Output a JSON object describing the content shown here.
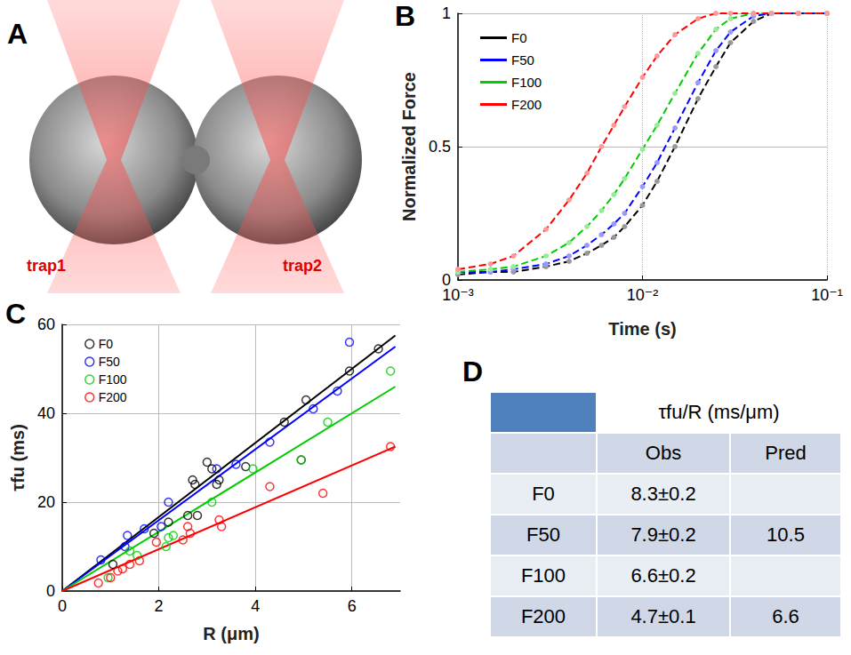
{
  "diagram": {
    "panel_label": "A",
    "labels": [
      "trap1",
      "trap2"
    ]
  },
  "chart_data": [
    {
      "panel_label": "B",
      "type": "line",
      "xlabel": "Time (s)",
      "ylabel": "Normalized Force",
      "log": "x",
      "grid": true,
      "legend": "upper left",
      "xlim": [
        0.001,
        0.1
      ],
      "xticks": [
        {
          "value": 0.001,
          "label": "10⁻³"
        },
        {
          "value": 0.01,
          "label": "10⁻²"
        },
        {
          "value": 0.1,
          "label": "10⁻¹"
        }
      ],
      "ylim": [
        0,
        1
      ],
      "yticks": [
        0,
        0.5,
        1
      ],
      "x": [
        0.001,
        0.0015,
        0.002,
        0.003,
        0.004,
        0.005,
        0.006,
        0.007,
        0.008,
        0.01,
        0.012,
        0.015,
        0.02,
        0.025,
        0.03,
        0.04,
        0.05,
        0.07,
        0.1
      ],
      "series": [
        {
          "name": "F0",
          "color": "#000000",
          "marker": "circle",
          "line_style": "dashed",
          "values": [
            0.02,
            0.03,
            0.03,
            0.05,
            0.07,
            0.1,
            0.13,
            0.16,
            0.2,
            0.28,
            0.37,
            0.5,
            0.68,
            0.8,
            0.89,
            0.97,
            1,
            1,
            1
          ]
        },
        {
          "name": "F50",
          "color": "#0000ff",
          "marker": "circle",
          "line_style": "dashed",
          "values": [
            0.03,
            0.03,
            0.04,
            0.06,
            0.09,
            0.13,
            0.17,
            0.21,
            0.25,
            0.35,
            0.44,
            0.57,
            0.74,
            0.86,
            0.93,
            0.99,
            1,
            1,
            1
          ]
        },
        {
          "name": "F100",
          "color": "#00cc00",
          "marker": "circle",
          "line_style": "dashed",
          "values": [
            0.03,
            0.04,
            0.05,
            0.09,
            0.14,
            0.2,
            0.26,
            0.32,
            0.38,
            0.49,
            0.58,
            0.7,
            0.85,
            0.94,
            0.98,
            1,
            1,
            1,
            1
          ]
        },
        {
          "name": "F200",
          "color": "#ff0000",
          "marker": "circle",
          "line_style": "dashed",
          "values": [
            0.04,
            0.06,
            0.09,
            0.19,
            0.3,
            0.4,
            0.5,
            0.58,
            0.65,
            0.76,
            0.84,
            0.92,
            0.98,
            1,
            1,
            1,
            1,
            1,
            1
          ]
        }
      ]
    },
    {
      "panel_label": "C",
      "type": "scatter",
      "xlabel": "R (μm)",
      "ylabel": "τfu (ms)",
      "grid": true,
      "legend": "upper left",
      "xlim": [
        0,
        7
      ],
      "xticks": [
        0,
        2,
        4,
        6
      ],
      "ylim": [
        0,
        60
      ],
      "yticks": [
        0,
        20,
        40,
        60
      ],
      "series": [
        {
          "name": "F0",
          "color": "#000000",
          "marker": "circle",
          "line_style": "solid",
          "x": [
            1.05,
            1.9,
            2.2,
            2.6,
            2.7,
            2.75,
            2.8,
            3.0,
            3.1,
            3.2,
            3.25,
            3.8,
            4.6,
            4.95,
            5.05,
            5.95,
            6.55
          ],
          "values": [
            6,
            13,
            15.5,
            17,
            25,
            24,
            17,
            29,
            27.5,
            24,
            25,
            28,
            38,
            29.5,
            43,
            49.5,
            54.5
          ],
          "fit": {
            "x": [
              0,
              6.9
            ],
            "values": [
              0,
              57.5
            ]
          }
        },
        {
          "name": "F50",
          "color": "#0000ff",
          "marker": "circle",
          "line_style": "solid",
          "x": [
            0.8,
            1.35,
            1.3,
            1.7,
            2.05,
            2.2,
            3.2,
            3.6,
            4.3,
            5.2,
            5.7,
            5.95
          ],
          "values": [
            7,
            12.5,
            10,
            14,
            14.5,
            20,
            27.5,
            28.5,
            33.5,
            41,
            45,
            56
          ],
          "fit": {
            "x": [
              0,
              6.9
            ],
            "values": [
              0,
              55
            ]
          }
        },
        {
          "name": "F100",
          "color": "#00cc00",
          "marker": "circle",
          "line_style": "solid",
          "x": [
            0.95,
            1.4,
            1.55,
            2.15,
            2.2,
            2.3,
            3.1,
            3.95,
            4.95,
            5.5,
            6.8
          ],
          "values": [
            3,
            9,
            8,
            10,
            12,
            12.5,
            20,
            27.5,
            29.5,
            38,
            49.5
          ],
          "fit": {
            "x": [
              0,
              6.9
            ],
            "values": [
              0,
              46
            ]
          }
        },
        {
          "name": "F200",
          "color": "#ff0000",
          "marker": "circle",
          "line_style": "solid",
          "x": [
            0.75,
            1.0,
            1.15,
            1.25,
            1.4,
            1.6,
            1.95,
            2.5,
            2.6,
            2.65,
            3.25,
            3.3,
            4.3,
            5.4,
            6.8
          ],
          "values": [
            1.8,
            3,
            4.5,
            5,
            6,
            6.8,
            11,
            11.5,
            14.5,
            13,
            16,
            14.5,
            23.5,
            22,
            32.5
          ],
          "fit": {
            "x": [
              0,
              6.9
            ],
            "values": [
              0,
              32.5
            ]
          }
        }
      ]
    }
  ],
  "table": {
    "panel_label": "D",
    "header": "τfu/R (ms/μm)",
    "columns": [
      "Obs",
      "Pred"
    ],
    "rows": [
      [
        "F0",
        "8.3±0.2",
        null
      ],
      [
        "F50",
        "7.9±0.2",
        "10.5"
      ],
      [
        "F100",
        "6.6±0.2",
        null
      ],
      [
        "F200",
        "4.7±0.1",
        "6.6"
      ]
    ]
  }
}
